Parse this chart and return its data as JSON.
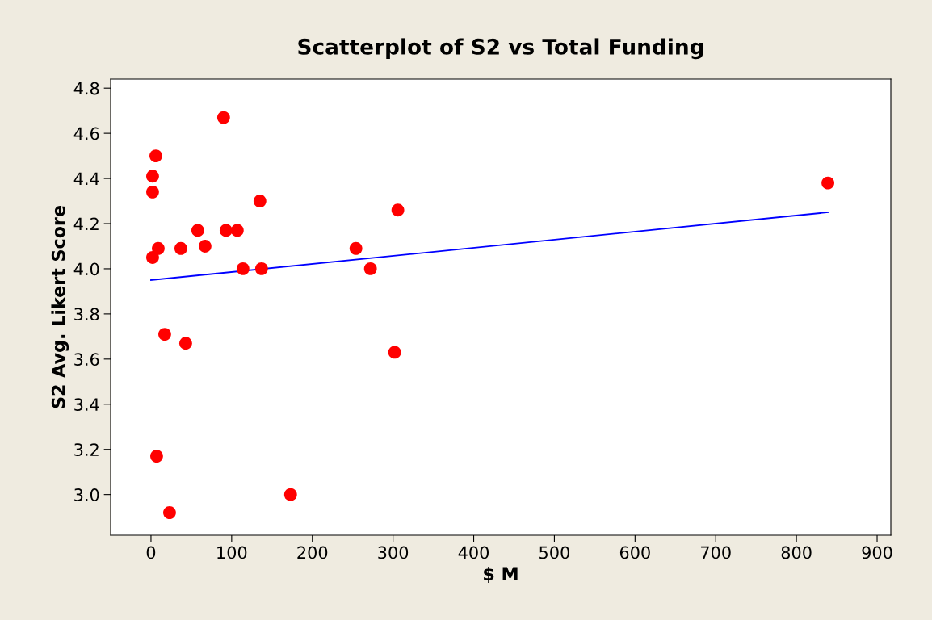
{
  "chart_data": {
    "type": "scatter",
    "title": "Scatterplot of S2 vs Total Funding",
    "xlabel": "$ M",
    "ylabel": "S2 Avg. Likert Score",
    "series": [
      {
        "color": "#ff0000",
        "marker": "circle",
        "x": [
          2,
          6,
          2,
          2,
          9,
          17,
          7,
          23,
          37,
          43,
          58,
          67,
          90,
          93,
          107,
          114,
          135,
          137,
          173,
          254,
          272,
          302,
          306,
          839
        ],
        "values": [
          4.41,
          4.5,
          4.34,
          4.05,
          4.09,
          3.71,
          3.17,
          2.92,
          4.09,
          3.67,
          4.17,
          4.1,
          4.67,
          4.17,
          4.17,
          4.0,
          4.3,
          4.0,
          3.0,
          4.09,
          4.0,
          3.63,
          4.26,
          4.38
        ]
      },
      {
        "type": "line",
        "color": "#0000ff",
        "marker": "none",
        "x": [
          0,
          839
        ],
        "values": [
          3.95,
          4.25
        ]
      }
    ],
    "xlim": [
      -50,
      917
    ],
    "ylim": [
      2.82,
      4.84
    ],
    "xticks": [
      0,
      100,
      200,
      300,
      400,
      500,
      600,
      700,
      800,
      900
    ],
    "yticks": [
      {
        "value": 3,
        "label": "3.0"
      },
      3.2,
      3.4,
      3.6,
      3.8,
      {
        "value": 4,
        "label": "4.0"
      },
      4.2,
      4.4,
      4.6,
      4.8
    ],
    "grid": false,
    "legend": false
  }
}
